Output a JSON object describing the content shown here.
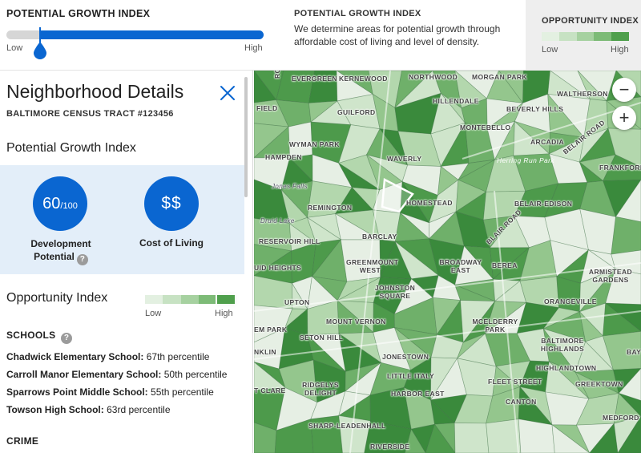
{
  "colors": {
    "accent_blue": "#0a66d1",
    "panel_highlight": "#e3eef9",
    "opportunity_scale": [
      "#e3f0e1",
      "#c7e2c3",
      "#a6d1a0",
      "#7dbb77",
      "#4f9f4c"
    ]
  },
  "growth_slider": {
    "title": "POTENTIAL GROWTH INDEX",
    "low_label": "Low",
    "high_label": "High",
    "handle_fraction": 0.13
  },
  "info": {
    "title": "POTENTIAL GROWTH INDEX",
    "text": "We determine areas for potential growth through affordable cost of living and level of density."
  },
  "opportunity_legend": {
    "title": "OPPORTUNITY INDEX",
    "low_label": "Low",
    "high_label": "High"
  },
  "panel": {
    "title": "Neighborhood Details",
    "close_icon": "close-icon",
    "tract": "BALTIMORE CENSUS TRACT #123456",
    "growth_section_title": "Potential Growth Index",
    "development": {
      "value": "60",
      "out_of": "/100",
      "label_line1": "Development",
      "label_line2": "Potential",
      "help": "?"
    },
    "cost_of_living": {
      "value": "$$",
      "label": "Cost of Living"
    },
    "opportunity_section_title": "Opportunity Index",
    "opportunity_low": "Low",
    "opportunity_high": "High",
    "schools_title": "SCHOOLS",
    "schools_help": "?",
    "schools": [
      {
        "name": "Chadwick Elementary School:",
        "value": "67th percentile"
      },
      {
        "name": "Carroll Manor Elementary School:",
        "value": "50th percentile"
      },
      {
        "name": "Sparrows Point Middle School:",
        "value": "55th percentile"
      },
      {
        "name": "Towson High School:",
        "value": "63rd percentile"
      }
    ],
    "crime_title": "CRIME"
  },
  "map": {
    "zoom_in": "+",
    "zoom_out": "−",
    "labels": {
      "evergreen": "EVERGREEN",
      "kernewood": "KERNEWOOD",
      "northwood": "NORTHWOOD",
      "morgan_park": "MORGAN PARK",
      "waltherson": "WALTHERSON",
      "field": "FIELD",
      "guilford": "GUILFORD",
      "hillendale": "HILLENDALE",
      "beverly_hills": "BEVERLY HILLS",
      "montebello": "MONTEBELLO",
      "belair_road": "BELAIR ROAD",
      "wyman_park": "WYMAN PARK",
      "arcadia": "ARCADIA",
      "hampden": "HAMPDEN",
      "waverly": "WAVERLY",
      "herring_run_park": "Herring Run Park",
      "frankford": "FRANKFORD",
      "jones_falls": "Jones Falls",
      "homestead": "HOMESTEAD",
      "remington": "REMINGTON",
      "belair_edison": "BELAIR-EDISON",
      "druid_lake": "Druid Lake",
      "reservoir_hill": "RESERVOIR HILL",
      "barclay": "BARCLAY",
      "blair_road": "BLAIR ROAD",
      "greenmount_west": "GREENMOUNT WEST",
      "broadway_east": "BROADWAY EAST",
      "berea": "BEREA",
      "uid_heights": "UID HEIGHTS",
      "armistead_gardens": "ARMISTEAD GARDENS",
      "johnston_square": "JOHNSTON SQUARE",
      "upton": "UPTON",
      "orangeville": "ORANGEVILLE",
      "mount_vernon": "MOUNT VERNON",
      "mcelderry_park": "MCELDERRY PARK",
      "em_park": "EM PARK",
      "seton_hill": "SETON HILL",
      "baltimore_highlands": "BALTIMORE HIGHLANDS",
      "nklin": "NKLIN",
      "jonestown": "JONESTOWN",
      "highlandtown": "HIGHLANDTOWN",
      "bay": "BAY",
      "little_italy": "LITTLE ITALY",
      "fleet_street": "FLEET STREET",
      "greektown": "GREEKTOWN",
      "ridgelys_delight": "RIDGELYS DELIGHT",
      "harbor_east": "HARBOR EAST",
      "t_clare": "T CLARE",
      "canton": "CANTON",
      "medford": "MEDFORD",
      "sharp_leadenhall": "SHARP-LEADENHALL",
      "riverside": "RIVERSIDE",
      "roland": "ROLAND"
    }
  }
}
